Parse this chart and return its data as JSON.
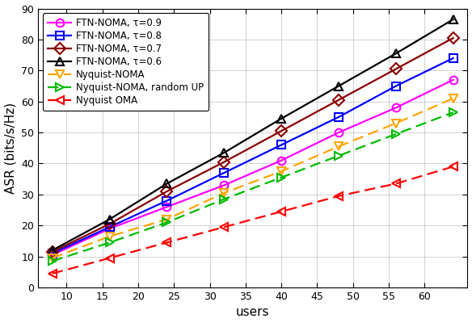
{
  "x": [
    8,
    16,
    24,
    32,
    40,
    48,
    56,
    64
  ],
  "series": [
    {
      "key": "FTN-NOMA, tau=0.9",
      "y": [
        10.5,
        19.0,
        26.0,
        33.0,
        41.0,
        50.0,
        58.0,
        67.0
      ],
      "color": "#FF00FF",
      "marker": "o",
      "linestyle": "-",
      "label": "FTN-NOMA, τ=0.9"
    },
    {
      "key": "FTN-NOMA, tau=0.8",
      "y": [
        11.0,
        19.5,
        28.0,
        37.0,
        46.0,
        55.0,
        65.0,
        74.0
      ],
      "color": "#0000FF",
      "marker": "s",
      "linestyle": "-",
      "label": "FTN-NOMA, τ=0.8"
    },
    {
      "key": "FTN-NOMA, tau=0.7",
      "y": [
        11.5,
        20.5,
        31.0,
        40.5,
        50.5,
        60.5,
        70.5,
        80.5
      ],
      "color": "#8B0000",
      "marker": "D",
      "linestyle": "-",
      "label": "FTN-NOMA, τ=0.7"
    },
    {
      "key": "FTN-NOMA, tau=0.6",
      "y": [
        12.0,
        22.0,
        33.5,
        43.5,
        54.5,
        65.0,
        75.5,
        86.5
      ],
      "color": "#000000",
      "marker": "^",
      "linestyle": "-",
      "label": "FTN-NOMA, τ=0.6"
    },
    {
      "key": "Nyquist-NOMA",
      "y": [
        9.5,
        16.5,
        22.0,
        30.5,
        37.5,
        45.5,
        53.0,
        61.0
      ],
      "color": "#FFA500",
      "marker": "v",
      "linestyle": "--",
      "label": "Nyquist-NOMA"
    },
    {
      "key": "Nyquist-NOMA, random UP",
      "y": [
        8.5,
        14.5,
        21.0,
        28.5,
        35.5,
        42.5,
        49.5,
        56.5
      ],
      "color": "#00BB00",
      "marker": ">",
      "linestyle": "--",
      "label": "Nyquist-NOMA, random UP"
    },
    {
      "key": "Nyquist OMA",
      "y": [
        4.5,
        9.5,
        14.5,
        19.5,
        24.5,
        29.5,
        33.5,
        39.0
      ],
      "color": "#FF0000",
      "marker": "<",
      "linestyle": "--",
      "label": "Nyquist OMA"
    }
  ],
  "xlabel": "users",
  "ylabel": "ASR (bits/s/Hz)",
  "xlim": [
    6,
    66
  ],
  "ylim": [
    0,
    90
  ],
  "xticks": [
    10,
    15,
    20,
    25,
    30,
    35,
    40,
    45,
    50,
    55,
    60
  ],
  "yticks": [
    0,
    10,
    20,
    30,
    40,
    50,
    60,
    70,
    80,
    90
  ],
  "grid": true,
  "legend_fontsize": 8.5,
  "axis_fontsize": 11,
  "tick_fontsize": 9,
  "markersize": 7,
  "linewidth": 1.6,
  "fig_width": 5.84,
  "fig_height": 4.0,
  "fig_dpi": 100
}
